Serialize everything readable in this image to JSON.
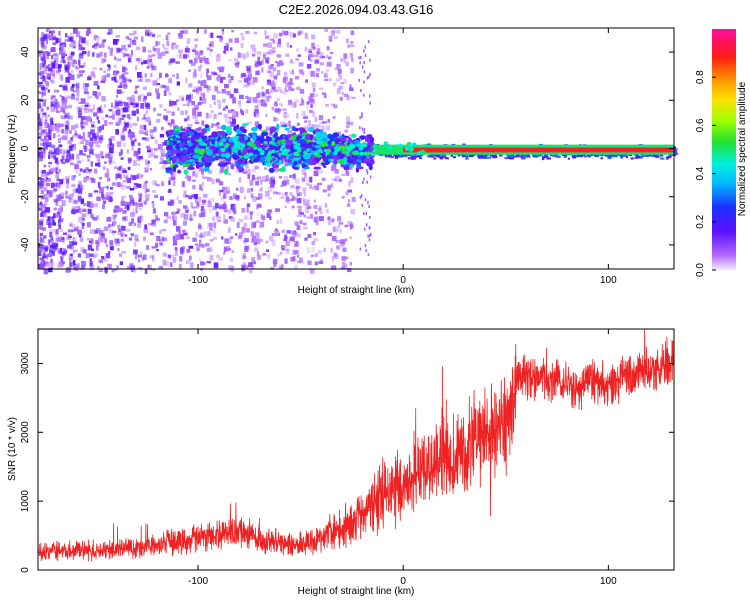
{
  "title": "C2E2.2026.094.03.43.G16",
  "colors": {
    "snr_line": "#ee2222",
    "spectrum_low": "#7b1fff",
    "spectrum_mid": "#00e0ff",
    "spectrum_high": "#ff2222"
  },
  "chart_data": [
    {
      "type": "heatmap",
      "title": "",
      "xlabel": "Height of straight line (km)",
      "ylabel": "Frequency (Hz)",
      "xlim": [
        -178,
        132
      ],
      "ylim": [
        -50,
        50
      ],
      "xticks": [
        -100,
        0,
        100
      ],
      "xtick_labels": [
        "-100",
        "0",
        "100"
      ],
      "yticks": [
        -40,
        -20,
        0,
        20,
        40
      ],
      "ytick_labels": [
        "-40",
        "-20",
        "0",
        "20",
        "40"
      ],
      "colorbar": {
        "label": "Normalized spectral amplitude",
        "range": [
          0.0,
          1.0
        ],
        "ticks": [
          0.0,
          0.2,
          0.4,
          0.6,
          0.8
        ],
        "tick_labels": [
          "0.0",
          "0.2",
          "0.4",
          "0.6",
          "0.8"
        ],
        "colormap": "rainbow (purple-blue-cyan-green-yellow-orange-red-magenta)"
      },
      "features": {
        "scatter_region_km": [
          -178,
          -25
        ],
        "main_band_center_hz": 0,
        "band_start_km": -115,
        "band_end_km": 132,
        "strong_line_start_km": 0,
        "strong_line_amplitude": 0.9,
        "band_amplitude": 0.4
      }
    },
    {
      "type": "line",
      "title": "",
      "xlabel": "Height of straight line (km)",
      "ylabel": "SNR (10 * v/v)",
      "xlim": [
        -178,
        132
      ],
      "ylim": [
        0,
        3500
      ],
      "xticks": [
        -100,
        0,
        100
      ],
      "xtick_labels": [
        "-100",
        "0",
        "100"
      ],
      "yticks": [
        0,
        1000,
        2000,
        3000
      ],
      "ytick_labels": [
        "0",
        "1000",
        "2000",
        "3000"
      ],
      "series": [
        {
          "name": "SNR",
          "x": [
            -178,
            -160,
            -140,
            -120,
            -100,
            -90,
            -80,
            -70,
            -60,
            -50,
            -40,
            -30,
            -25,
            -20,
            -15,
            -10,
            -5,
            0,
            10,
            20,
            30,
            40,
            50,
            54,
            55,
            60,
            70,
            80,
            85,
            90,
            100,
            110,
            120,
            132
          ],
          "y": [
            270,
            280,
            300,
            360,
            470,
            520,
            560,
            430,
            400,
            370,
            430,
            600,
            700,
            800,
            950,
            1100,
            1150,
            1200,
            1450,
            1650,
            1800,
            1950,
            2100,
            2200,
            2800,
            2800,
            2750,
            2720,
            2600,
            2750,
            2700,
            2800,
            2900,
            3000
          ]
        }
      ]
    }
  ]
}
